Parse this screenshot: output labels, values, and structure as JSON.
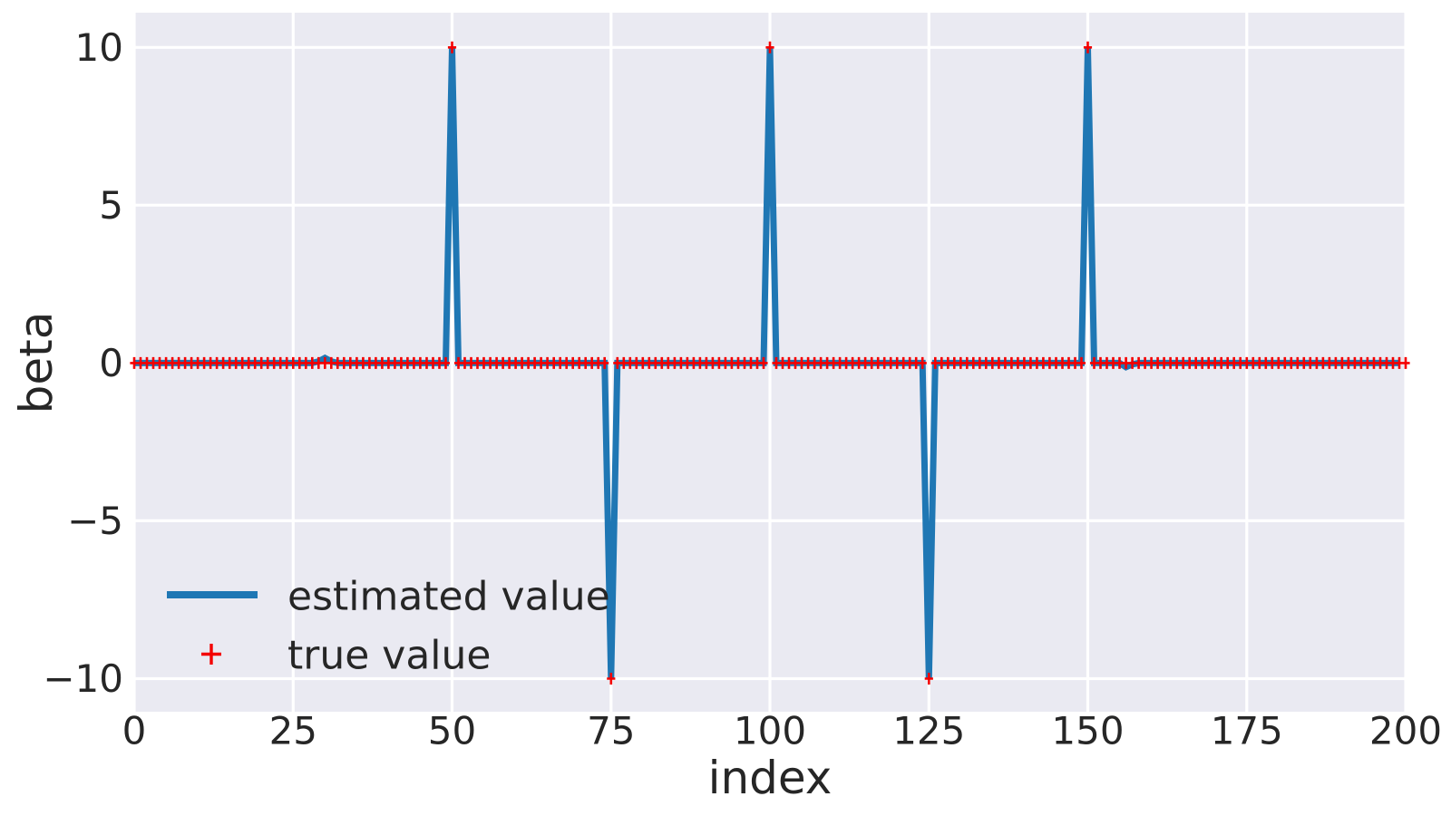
{
  "figure": {
    "background": "#ffffff",
    "plot_background": "#eaeaf2",
    "grid_color": "#ffffff",
    "text_color": "#262626"
  },
  "chart_data": {
    "type": "line",
    "title": "",
    "xlabel": "index",
    "ylabel": "beta",
    "xlim": [
      0,
      200
    ],
    "ylim": [
      -11.05,
      11.1
    ],
    "xticks": [
      0,
      25,
      50,
      75,
      100,
      125,
      150,
      175,
      200
    ],
    "xtick_labels": [
      "0",
      "25",
      "50",
      "75",
      "100",
      "125",
      "150",
      "175",
      "200"
    ],
    "yticks": [
      10,
      5,
      0,
      -5,
      -10
    ],
    "ytick_labels": [
      "10",
      "5",
      "0",
      "−5",
      "−10"
    ],
    "grid": true,
    "legend": {
      "position": "lower left",
      "frame": false,
      "entries": [
        {
          "label": "estimated value",
          "marker": "line",
          "color": "#1f77b4"
        },
        {
          "label": "true value",
          "marker": "plus",
          "color": "#f40000"
        }
      ]
    },
    "series": [
      {
        "name": "estimated value",
        "style": "line",
        "color": "#1f77b4",
        "linewidth": 7,
        "x_start": 0,
        "x_end": 199,
        "x_step": 1,
        "default_value": 0,
        "nonzero_points": {
          "29": 0.05,
          "30": 0.16,
          "31": 0.05,
          "50": 10,
          "75": -10,
          "100": 10,
          "125": -10,
          "150": 10,
          "156": -0.13,
          "157": -0.04
        }
      },
      {
        "name": "true value",
        "style": "plus-markers",
        "color": "#f40000",
        "marker_size": 13,
        "x_start": 0,
        "x_end": 200,
        "x_step": 1,
        "default_value": 0,
        "nonzero_points": {
          "50": 10,
          "75": -10,
          "100": 10,
          "125": -10,
          "150": 10
        }
      }
    ]
  }
}
